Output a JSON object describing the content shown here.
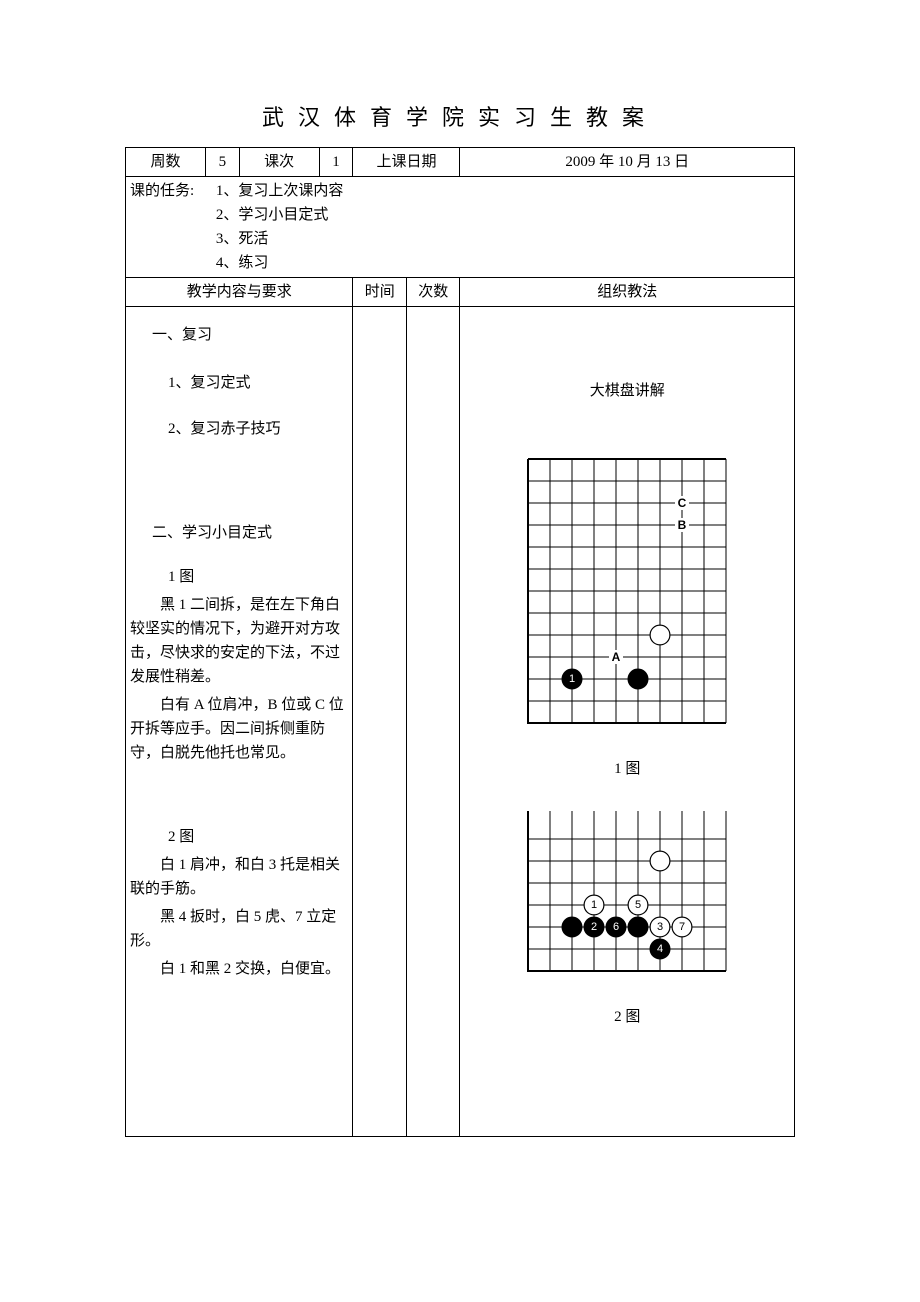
{
  "title": "武汉体育学院实习生教案",
  "header": {
    "week_label": "周数",
    "week_value": "5",
    "lesson_label": "课次",
    "lesson_value": "1",
    "date_label": "上课日期",
    "date_value": "2009 年 10 月 13 日"
  },
  "task": {
    "label": "课的任务:",
    "items": [
      "1、复习上次课内容",
      "2、学习小目定式",
      "3、死活",
      "4、练习"
    ]
  },
  "columns": {
    "content": "教学内容与要求",
    "time": "时间",
    "count": "次数",
    "method": "组织教法"
  },
  "content": {
    "section1_title": "一、复习",
    "section1_item1": "1、复习定式",
    "section1_item2": "2、复习赤子技巧",
    "section2_title": "二、学习小目定式",
    "fig1_label": "1 图",
    "fig1_p1": "黑 1 二间拆，是在左下角白较坚实的情况下，为避开对方攻击，尽快求的安定的下法，不过发展性稍差。",
    "fig1_p2": "白有 A 位肩冲，B 位或 C 位开拆等应手。因二间拆侧重防守，白脱先他托也常见。",
    "fig2_label": "2 图",
    "fig2_p1": "白 1 肩冲，和白 3 托是相关联的手筋。",
    "fig2_p2": "黑 4 扳时，白 5 虎、7 立定形。",
    "fig2_p3": "白 1 和黑 2 交换，白便宜。"
  },
  "method": {
    "explain_label": "大棋盘讲解",
    "caption1": "1 图",
    "caption2": "2 图"
  },
  "board1": {
    "cell": 22,
    "cols": 9,
    "rows": 12,
    "grid_color": "#000000",
    "white_stones": [
      {
        "col": 6,
        "row": 8
      }
    ],
    "black_stones": [
      {
        "col": 2,
        "row": 10,
        "label": "1"
      },
      {
        "col": 5,
        "row": 10
      }
    ],
    "letters": [
      {
        "col": 4,
        "row": 9,
        "text": "A"
      },
      {
        "col": 7,
        "row": 3,
        "text": "B"
      },
      {
        "col": 7,
        "row": 2,
        "text": "C"
      }
    ]
  },
  "board2": {
    "cell": 22,
    "cols": 9,
    "rows": 7,
    "grid_color": "#000000",
    "white_stones": [
      {
        "col": 6,
        "row": 2
      },
      {
        "col": 3,
        "row": 4,
        "label": "1"
      },
      {
        "col": 5,
        "row": 4,
        "label": "5"
      },
      {
        "col": 6,
        "row": 5,
        "label": "3"
      },
      {
        "col": 7,
        "row": 5,
        "label": "7"
      }
    ],
    "black_stones": [
      {
        "col": 2,
        "row": 5
      },
      {
        "col": 3,
        "row": 5,
        "label": "2"
      },
      {
        "col": 4,
        "row": 5,
        "label": "6"
      },
      {
        "col": 5,
        "row": 5
      },
      {
        "col": 6,
        "row": 6,
        "label": "4"
      }
    ]
  }
}
